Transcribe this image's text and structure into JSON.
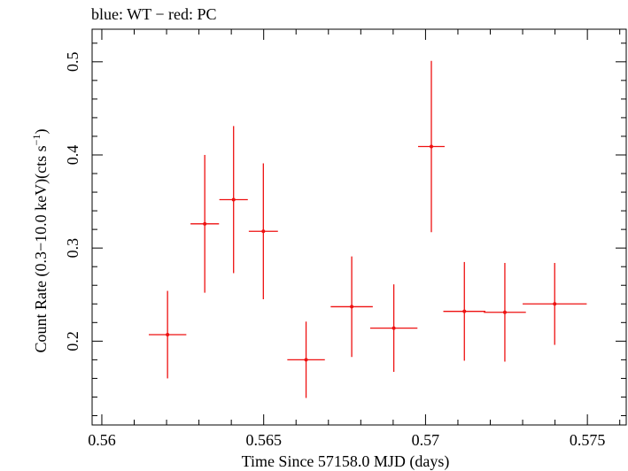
{
  "chart_data": {
    "type": "scatter",
    "title": "blue: WT − red: PC",
    "xlabel": "Time Since 57158.0 MJD (days)",
    "ylabel": "Count Rate (0.3−10.0 keV)(cts s",
    "ylabel_exponent": "−1",
    "ylabel_close": ")",
    "xlim": [
      0.5597,
      0.5762
    ],
    "ylim": [
      0.11,
      0.535
    ],
    "x_ticks": [
      0.56,
      0.565,
      0.57,
      0.575
    ],
    "x_tick_labels": [
      "0.56",
      "0.565",
      "0.57",
      "0.575"
    ],
    "y_ticks": [
      0.2,
      0.3,
      0.4,
      0.5
    ],
    "y_tick_labels": [
      "0.2",
      "0.3",
      "0.4",
      "0.5"
    ],
    "grid": false,
    "series": [
      {
        "name": "PC",
        "color": "#ee1111",
        "points": [
          {
            "x": 0.56203,
            "xerr": 0.00058,
            "y": 0.207,
            "yerr": 0.047
          },
          {
            "x": 0.56318,
            "xerr": 0.00044,
            "y": 0.326,
            "yerr": 0.074
          },
          {
            "x": 0.56407,
            "xerr": 0.00044,
            "y": 0.352,
            "yerr": 0.079
          },
          {
            "x": 0.56499,
            "xerr": 0.00045,
            "y": 0.318,
            "yerr": 0.073
          },
          {
            "x": 0.56631,
            "xerr": 0.00058,
            "y": 0.18,
            "yerr": 0.041
          },
          {
            "x": 0.56772,
            "xerr": 0.00065,
            "y": 0.237,
            "yerr": 0.054
          },
          {
            "x": 0.56902,
            "xerr": 0.00073,
            "y": 0.214,
            "yerr": 0.047
          },
          {
            "x": 0.57018,
            "xerr": 0.00041,
            "y": 0.409,
            "yerr": 0.092
          },
          {
            "x": 0.5712,
            "xerr": 0.00065,
            "y": 0.232,
            "yerr": 0.053
          },
          {
            "x": 0.57245,
            "xerr": 0.00065,
            "y": 0.231,
            "yerr": 0.053
          },
          {
            "x": 0.57399,
            "xerr": 0.00099,
            "y": 0.24,
            "yerr": 0.044
          }
        ]
      }
    ]
  }
}
